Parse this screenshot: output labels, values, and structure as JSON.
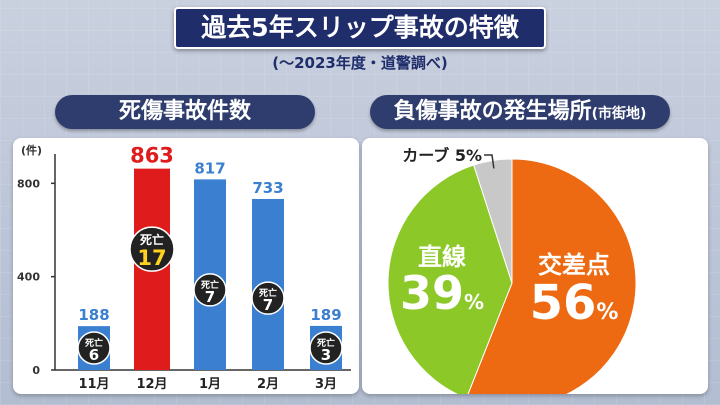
{
  "header": {
    "title": "過去5年スリップ事故の特徴",
    "subtitle": "(～2023年度・道警調べ)"
  },
  "bar_panel": {
    "heading": "死傷事故件数"
  },
  "pie_panel": {
    "heading": "負傷事故の発生場所",
    "heading_suffix": "(市街地)"
  },
  "chart_data": [
    {
      "type": "bar",
      "title": "死傷事故件数",
      "ylabel": "(件)",
      "ylim": [
        0,
        900
      ],
      "yticks": [
        0,
        400,
        800
      ],
      "categories": [
        "11月",
        "12月",
        "1月",
        "2月",
        "3月"
      ],
      "series": [
        {
          "values": [
            188,
            863,
            817,
            733,
            189
          ]
        }
      ],
      "deaths": [
        6,
        17,
        7,
        7,
        3
      ],
      "death_label": "死亡",
      "highlight_index": 1,
      "colors": {
        "bar": "#3a7fd0",
        "highlight": "#e01b1b",
        "value_text": "#3a7fd0",
        "badge": "#222222",
        "badge_highlight_text": "#ffd21f"
      },
      "grid": false
    },
    {
      "type": "pie",
      "title": "負傷事故の発生場所(市街地)",
      "slices": [
        {
          "label": "交差点",
          "value": 56,
          "color": "#ee6a12"
        },
        {
          "label": "直線",
          "value": 39,
          "color": "#8bc828"
        },
        {
          "label": "カーブ",
          "value": 5,
          "color": "#c8c8c8"
        }
      ],
      "unit": "%"
    }
  ]
}
